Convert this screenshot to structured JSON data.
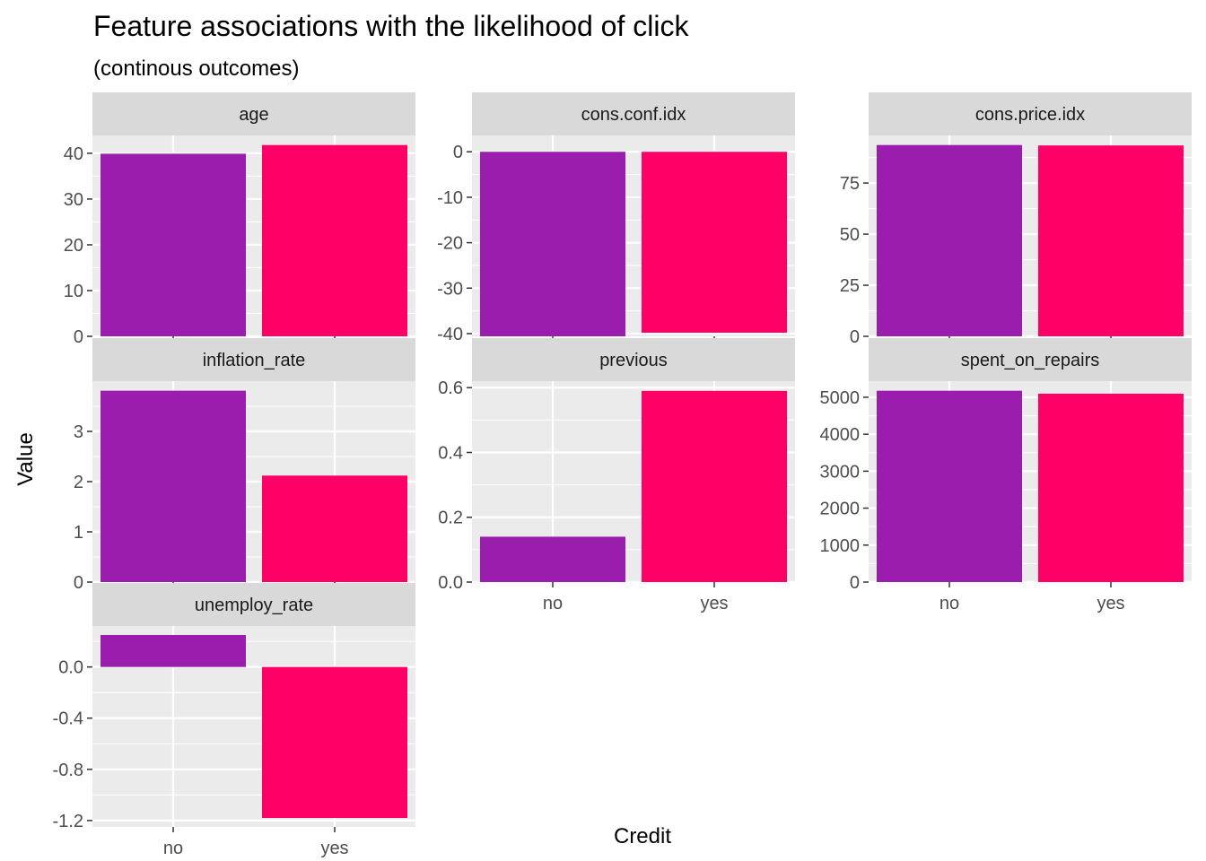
{
  "chart_data": {
    "type": "bar",
    "title": "Feature associations with the likelihood of click",
    "subtitle": "(continous outcomes)",
    "xlabel": "Credit",
    "ylabel": "Value",
    "categories": [
      "no",
      "yes"
    ],
    "colors": {
      "no": "#9A1DAE",
      "yes": "#FF0066",
      "panel_bg": "#EBEBEB",
      "strip_bg": "#D9D9D9",
      "grid": "#FFFFFF"
    },
    "grid": true,
    "facets": [
      {
        "name": "age",
        "values": [
          39.9,
          41.8
        ],
        "ylim": [
          0,
          43.9
        ],
        "yticks": [
          0,
          10,
          20,
          30,
          40
        ],
        "ytick_labels": [
          "0",
          "10",
          "20",
          "30",
          "40"
        ]
      },
      {
        "name": "cons.conf.idx",
        "values": [
          -40.6,
          -39.8
        ],
        "ylim": [
          -40.6,
          3.6
        ],
        "yticks": [
          0,
          -10,
          -20,
          -30,
          -40
        ],
        "ytick_labels": [
          "0",
          "-10",
          "-20",
          "-30",
          "-40"
        ]
      },
      {
        "name": "cons.price.idx",
        "values": [
          93.6,
          93.4
        ],
        "ylim": [
          0,
          98.3
        ],
        "yticks": [
          0,
          25,
          50,
          75
        ],
        "ytick_labels": [
          "0",
          "25",
          "50",
          "75"
        ]
      },
      {
        "name": "inflation_rate",
        "values": [
          3.81,
          2.12
        ],
        "ylim": [
          0,
          4.0
        ],
        "yticks": [
          0,
          1,
          2,
          3
        ],
        "ytick_labels": [
          "0",
          "1",
          "2",
          "3"
        ]
      },
      {
        "name": "previous",
        "values": [
          0.14,
          0.59
        ],
        "ylim": [
          0,
          0.62
        ],
        "yticks": [
          0,
          0.2,
          0.4,
          0.6
        ],
        "ytick_labels": [
          "0.0",
          "0.2",
          "0.4",
          "0.6"
        ]
      },
      {
        "name": "spent_on_repairs",
        "values": [
          5176,
          5096
        ],
        "ylim": [
          0,
          5435
        ],
        "yticks": [
          0,
          1000,
          2000,
          3000,
          4000,
          5000
        ],
        "ytick_labels": [
          "0",
          "1000",
          "2000",
          "3000",
          "4000",
          "5000"
        ]
      },
      {
        "name": "unemploy_rate",
        "values": [
          0.25,
          -1.18
        ],
        "ylim": [
          -1.25,
          0.32
        ],
        "yticks": [
          0,
          -0.4,
          -0.8,
          -1.2
        ],
        "ytick_labels": [
          "0.0",
          "-0.4",
          "-0.8",
          "-1.2"
        ]
      }
    ]
  }
}
